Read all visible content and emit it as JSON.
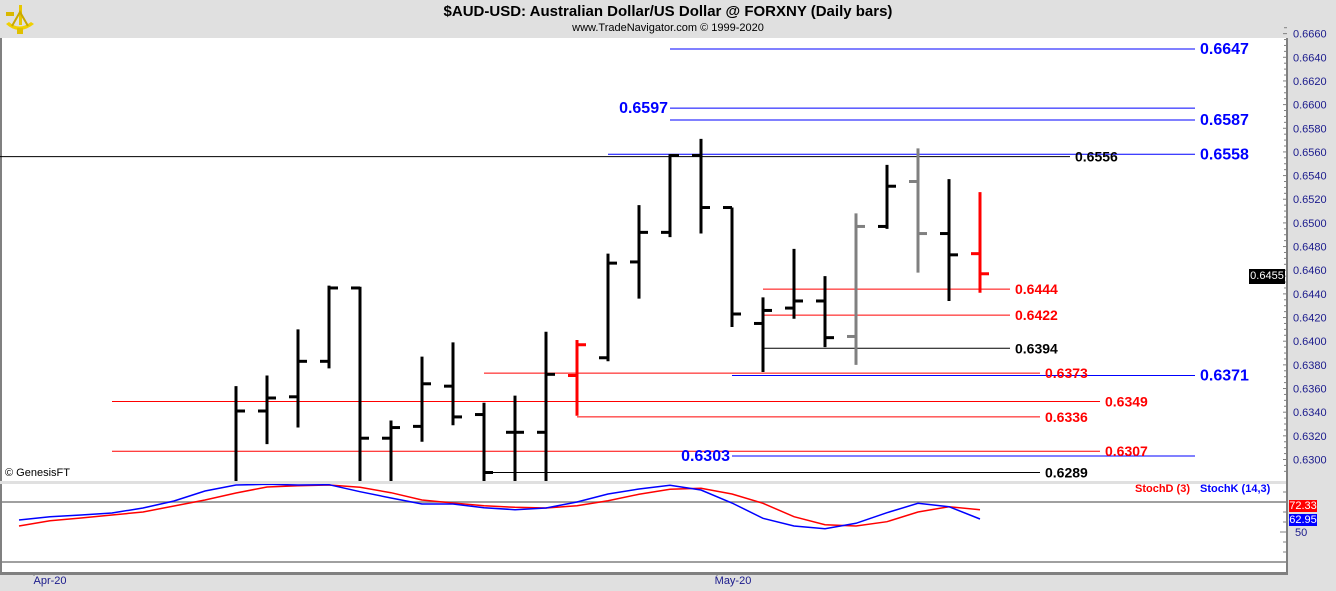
{
  "header": {
    "title": "$AUD-USD:  Australian Dollar/US Dollar @ FORXNY  (Daily bars)",
    "subtitle": "www.TradeNavigator.com © 1999-2020",
    "logo": "sextant-icon"
  },
  "copyright": "© GenesisFT",
  "current_price": "0.6455",
  "colors": {
    "up": "#000000",
    "red": "#ff0000",
    "gray": "#808080",
    "blue": "#0000ff",
    "axis_text": "#1a1a8c"
  },
  "chart_data": [
    {
      "type": "ohlc",
      "title": "$AUD-USD Daily bars",
      "y_axis": {
        "min": 0.63,
        "max": 0.666,
        "step": 0.002,
        "tick_labels": [
          "0.6660",
          "0.6640",
          "0.6620",
          "0.6600",
          "0.6580",
          "0.6560",
          "0.6540",
          "0.6520",
          "0.6500",
          "0.6480",
          "0.6460",
          "0.6440",
          "0.6420",
          "0.6400",
          "0.6380",
          "0.6360",
          "0.6340",
          "0.6320",
          "0.6300"
        ]
      },
      "x_axis": {
        "tick_labels": [
          "Apr-20",
          "May-20"
        ]
      },
      "bars": [
        {
          "o": null,
          "h": 0.6362,
          "l": 0.627,
          "c": 0.6341,
          "color": "black"
        },
        {
          "o": 0.6341,
          "h": 0.6371,
          "l": 0.6313,
          "c": 0.6352,
          "color": "black"
        },
        {
          "o": 0.6353,
          "h": 0.641,
          "l": 0.6327,
          "c": 0.6383,
          "color": "black"
        },
        {
          "o": 0.6383,
          "h": 0.6447,
          "l": 0.6377,
          "c": 0.6445,
          "color": "black"
        },
        {
          "o": 0.6445,
          "h": 0.6446,
          "l": 0.627,
          "c": 0.6318,
          "color": "black"
        },
        {
          "o": 0.6318,
          "h": 0.6333,
          "l": 0.627,
          "c": 0.6327,
          "color": "black"
        },
        {
          "o": 0.6328,
          "h": 0.6387,
          "l": 0.6315,
          "c": 0.6364,
          "color": "black"
        },
        {
          "o": 0.6362,
          "h": 0.6399,
          "l": 0.6329,
          "c": 0.6336,
          "color": "black"
        },
        {
          "o": 0.6338,
          "h": 0.6348,
          "l": 0.627,
          "c": 0.6289,
          "color": "black"
        },
        {
          "o": 0.6323,
          "h": 0.6354,
          "l": 0.627,
          "c": 0.6323,
          "color": "black"
        },
        {
          "o": 0.6323,
          "h": 0.6408,
          "l": 0.627,
          "c": 0.6372,
          "color": "black"
        },
        {
          "o": 0.6371,
          "h": 0.6401,
          "l": 0.6337,
          "c": 0.6397,
          "color": "red"
        },
        {
          "o": 0.6386,
          "h": 0.6474,
          "l": 0.6383,
          "c": 0.6466,
          "color": "black"
        },
        {
          "o": 0.6467,
          "h": 0.6515,
          "l": 0.6436,
          "c": 0.6492,
          "color": "black"
        },
        {
          "o": 0.6492,
          "h": 0.6558,
          "l": 0.6488,
          "c": 0.6557,
          "color": "black"
        },
        {
          "o": 0.6557,
          "h": 0.6571,
          "l": 0.6491,
          "c": 0.6513,
          "color": "black"
        },
        {
          "o": 0.6513,
          "h": 0.6513,
          "l": 0.6412,
          "c": 0.6423,
          "color": "black"
        },
        {
          "o": 0.6415,
          "h": 0.6437,
          "l": 0.6374,
          "c": 0.6426,
          "color": "black"
        },
        {
          "o": 0.6428,
          "h": 0.6478,
          "l": 0.6419,
          "c": 0.6434,
          "color": "black"
        },
        {
          "o": 0.6434,
          "h": 0.6455,
          "l": 0.6395,
          "c": 0.6403,
          "color": "black"
        },
        {
          "o": 0.6404,
          "h": 0.6508,
          "l": 0.638,
          "c": 0.6497,
          "color": "gray"
        },
        {
          "o": 0.6497,
          "h": 0.6549,
          "l": 0.6495,
          "c": 0.6531,
          "color": "black"
        },
        {
          "o": 0.6535,
          "h": 0.6563,
          "l": 0.6458,
          "c": 0.6491,
          "color": "gray"
        },
        {
          "o": 0.6491,
          "h": 0.6537,
          "l": 0.6434,
          "c": 0.6473,
          "color": "black"
        },
        {
          "o": 0.6474,
          "h": 0.6526,
          "l": 0.6441,
          "c": 0.6457,
          "color": "red"
        }
      ],
      "levels": [
        {
          "value": 0.6647,
          "label": "0.6647",
          "color": "blue"
        },
        {
          "value": 0.6597,
          "label": "0.6597",
          "color": "blue"
        },
        {
          "value": 0.6587,
          "label": "0.6587",
          "color": "blue"
        },
        {
          "value": 0.6558,
          "label": "0.6558",
          "color": "blue"
        },
        {
          "value": 0.6556,
          "label": "0.6556",
          "color": "black"
        },
        {
          "value": 0.6444,
          "label": "0.6444",
          "color": "red"
        },
        {
          "value": 0.6422,
          "label": "0.6422",
          "color": "red"
        },
        {
          "value": 0.6394,
          "label": "0.6394",
          "color": "black"
        },
        {
          "value": 0.6373,
          "label": "0.6373",
          "color": "red"
        },
        {
          "value": 0.6371,
          "label": "0.6371",
          "color": "blue"
        },
        {
          "value": 0.6349,
          "label": "0.6349",
          "color": "red"
        },
        {
          "value": 0.6336,
          "label": "0.6336",
          "color": "red"
        },
        {
          "value": 0.6307,
          "label": "0.6307",
          "color": "red"
        },
        {
          "value": 0.6303,
          "label": "0.6303",
          "color": "blue"
        },
        {
          "value": 0.6289,
          "label": "0.6289",
          "color": "black"
        }
      ]
    },
    {
      "type": "line",
      "title": "Stochastic",
      "y_axis": {
        "min": 0,
        "max": 100,
        "tick_labels": [
          "50"
        ],
        "ref_lines": [
          80,
          20
        ]
      },
      "series": [
        {
          "name": "StochD (3)",
          "color": "red",
          "last": "72.33",
          "values": [
            56,
            61.3,
            64,
            67,
            70,
            76,
            82,
            89,
            95,
            96.3,
            97,
            94.7,
            89.3,
            82,
            79,
            76.3,
            74.7,
            74,
            76.3,
            81.3,
            87.7,
            92.7,
            93.7,
            88,
            78.7,
            65.3,
            57.3,
            56,
            60.3,
            70,
            75.3,
            72.3
          ]
        },
        {
          "name": "StochK (14,3)",
          "color": "blue",
          "last": "62.95",
          "values": [
            62,
            65.3,
            67,
            69,
            74,
            81,
            91,
            97,
            97.7,
            97,
            97.3,
            90.3,
            84,
            78,
            78,
            74.3,
            72.3,
            74,
            80,
            88,
            93,
            96.7,
            92,
            79,
            63.7,
            56,
            53.3,
            58.7,
            69.3,
            78.7,
            75.3,
            63
          ]
        }
      ]
    }
  ]
}
